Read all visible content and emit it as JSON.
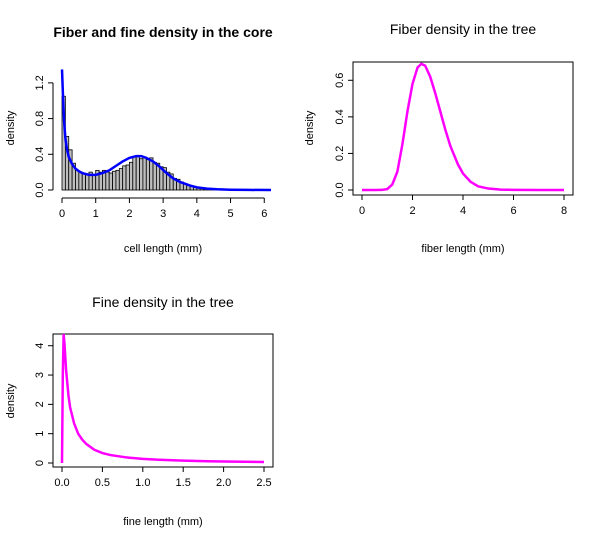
{
  "panels": {
    "core": {
      "title": "Fiber and fine density in the core",
      "xlabel": "cell length (mm)",
      "ylabel": "density"
    },
    "fiber": {
      "title": "Fiber density in the tree",
      "xlabel": "fiber length (mm)",
      "ylabel": "density"
    },
    "fine": {
      "title": "Fine density in the tree",
      "xlabel": "fine length (mm)",
      "ylabel": "density"
    }
  },
  "colors": {
    "hist_fill": "#bebebe",
    "hist_stroke": "#000000",
    "core_curve": "#0000ff",
    "tree_curve": "#ff00ff"
  },
  "chart_data": [
    {
      "type": "bar",
      "title": "Fiber and fine density in the core",
      "xlabel": "cell length (mm)",
      "ylabel": "density",
      "xlim": [
        0,
        6.2
      ],
      "ylim": [
        0,
        1.4
      ],
      "xticks": [
        "0",
        "1",
        "2",
        "3",
        "4",
        "5",
        "6"
      ],
      "yticks": [
        "0.0",
        "0.4",
        "0.8",
        "1.2"
      ],
      "bin_width": 0.1,
      "bin_start": 0,
      "hist_values": [
        1.05,
        0.6,
        0.45,
        0.3,
        0.22,
        0.2,
        0.18,
        0.18,
        0.2,
        0.17,
        0.22,
        0.2,
        0.22,
        0.2,
        0.19,
        0.21,
        0.22,
        0.24,
        0.27,
        0.28,
        0.31,
        0.37,
        0.38,
        0.35,
        0.37,
        0.34,
        0.36,
        0.31,
        0.3,
        0.26,
        0.25,
        0.2,
        0.18,
        0.13,
        0.12,
        0.09,
        0.07,
        0.05,
        0.04,
        0.03,
        0.02,
        0.015,
        0.01,
        0.008,
        0.006,
        0.004,
        0.003,
        0.002,
        0.002,
        0.001
      ],
      "series": [
        {
          "x": [
            0,
            0.03,
            0.06,
            0.1,
            0.15,
            0.2,
            0.3,
            0.4,
            0.5,
            0.6,
            0.8,
            1.0,
            1.2,
            1.4,
            1.6,
            1.8,
            2.0,
            2.2,
            2.35,
            2.5,
            2.7,
            2.9,
            3.1,
            3.3,
            3.5,
            3.8,
            4.0,
            4.3,
            4.6,
            5.0,
            5.5,
            6.2
          ],
          "y": [
            1.35,
            1.05,
            0.78,
            0.58,
            0.45,
            0.37,
            0.29,
            0.24,
            0.21,
            0.19,
            0.17,
            0.17,
            0.19,
            0.22,
            0.27,
            0.32,
            0.36,
            0.38,
            0.38,
            0.36,
            0.32,
            0.26,
            0.19,
            0.13,
            0.09,
            0.05,
            0.03,
            0.015,
            0.008,
            0.003,
            0.001,
            0.0
          ]
        }
      ]
    },
    {
      "type": "line",
      "title": "Fiber density in the tree",
      "xlabel": "fiber length (mm)",
      "ylabel": "density",
      "xlim": [
        0,
        8
      ],
      "ylim": [
        0,
        0.7
      ],
      "xticks": [
        "0",
        "2",
        "4",
        "6",
        "8"
      ],
      "yticks": [
        "0.0",
        "0.2",
        "0.4",
        "0.6"
      ],
      "series": [
        {
          "x": [
            0,
            0.5,
            0.8,
            1.0,
            1.2,
            1.4,
            1.6,
            1.8,
            2.0,
            2.2,
            2.35,
            2.5,
            2.7,
            2.9,
            3.1,
            3.3,
            3.5,
            3.8,
            4.0,
            4.3,
            4.6,
            5.0,
            5.5,
            6.0,
            7.0,
            8.0
          ],
          "y": [
            0,
            0,
            0.001,
            0.005,
            0.03,
            0.1,
            0.25,
            0.43,
            0.58,
            0.67,
            0.69,
            0.68,
            0.62,
            0.53,
            0.43,
            0.33,
            0.24,
            0.14,
            0.09,
            0.045,
            0.02,
            0.008,
            0.002,
            0.0005,
            0,
            0
          ]
        }
      ]
    },
    {
      "type": "line",
      "title": "Fine density in the tree",
      "xlabel": "fine length (mm)",
      "ylabel": "density",
      "xlim": [
        0,
        2.5
      ],
      "ylim": [
        0,
        4.4
      ],
      "xticks": [
        "0.0",
        "0.5",
        "1.0",
        "1.5",
        "2.0",
        "2.5"
      ],
      "yticks": [
        "0",
        "1",
        "2",
        "3",
        "4"
      ],
      "series": [
        {
          "x": [
            0,
            0.01,
            0.02,
            0.03,
            0.05,
            0.08,
            0.1,
            0.15,
            0.2,
            0.25,
            0.3,
            0.4,
            0.5,
            0.6,
            0.8,
            1.0,
            1.2,
            1.5,
            1.8,
            2.0,
            2.5
          ],
          "y": [
            0.0,
            3.0,
            4.4,
            4.1,
            3.2,
            2.3,
            1.9,
            1.35,
            1.0,
            0.8,
            0.65,
            0.45,
            0.34,
            0.27,
            0.19,
            0.14,
            0.11,
            0.08,
            0.06,
            0.05,
            0.035
          ]
        }
      ]
    }
  ]
}
